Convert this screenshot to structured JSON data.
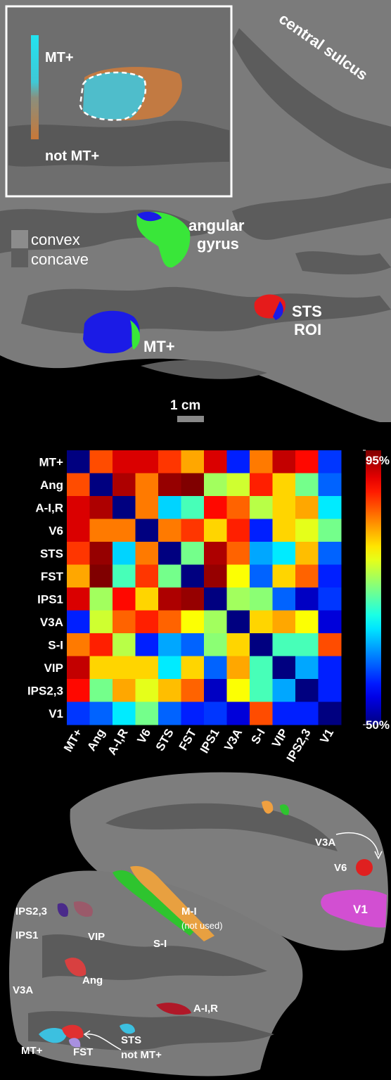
{
  "top_panel": {
    "central_sulcus": "central sulcus",
    "inset_labels": {
      "high": "MT+",
      "low": "not MT+"
    },
    "legend": [
      "convex",
      "concave"
    ],
    "angular_gyrus": [
      "angular",
      "gyrus"
    ],
    "sts_roi": [
      "STS",
      "ROI"
    ],
    "mt": "MT+",
    "scale_bar": "1 cm"
  },
  "chart_data": {
    "type": "heatmap",
    "colormap": "jet",
    "categories": [
      "MT+",
      "Ang",
      "A-I,R",
      "V6",
      "STS",
      "FST",
      "IPS1",
      "V3A",
      "S-I",
      "VIP",
      "IPS2,3",
      "V1"
    ],
    "values": [
      [
        50,
        86,
        91,
        91,
        87,
        82,
        91,
        57,
        84,
        92,
        89,
        58
      ],
      [
        86,
        50,
        93,
        84,
        94,
        95,
        74,
        76,
        88,
        80,
        72,
        60
      ],
      [
        91,
        93,
        50,
        84,
        65,
        70,
        89,
        85,
        75,
        80,
        82,
        66
      ],
      [
        91,
        84,
        84,
        50,
        84,
        87,
        80,
        88,
        57,
        80,
        77,
        72
      ],
      [
        87,
        94,
        65,
        84,
        50,
        72,
        93,
        85,
        63,
        66,
        81,
        60
      ],
      [
        82,
        95,
        70,
        87,
        72,
        50,
        94,
        78,
        60,
        80,
        85,
        57
      ],
      [
        91,
        74,
        89,
        80,
        93,
        94,
        50,
        74,
        73,
        60,
        53,
        58
      ],
      [
        57,
        76,
        85,
        88,
        85,
        78,
        74,
        50,
        80,
        82,
        78,
        54
      ],
      [
        84,
        88,
        75,
        57,
        63,
        60,
        73,
        80,
        50,
        70,
        70,
        86
      ],
      [
        92,
        80,
        80,
        80,
        66,
        80,
        60,
        82,
        70,
        50,
        63,
        57
      ],
      [
        89,
        72,
        82,
        77,
        81,
        85,
        53,
        78,
        70,
        63,
        50,
        57
      ],
      [
        58,
        60,
        66,
        72,
        60,
        57,
        58,
        54,
        86,
        57,
        57,
        50
      ]
    ],
    "zlim": [
      50,
      95
    ],
    "zticks": [
      {
        "value": 95,
        "label": "95%"
      },
      {
        "value": 50,
        "label": "50%"
      }
    ]
  },
  "bottom_panel": {
    "labels": [
      "V3A",
      "V6",
      "V1",
      "IPS2,3",
      "IPS1",
      "VIP",
      "S-I",
      "M-I",
      "(not used)",
      "Ang",
      "V3A",
      "A-I,R",
      "MT+",
      "FST",
      "STS",
      "not MT+"
    ]
  }
}
